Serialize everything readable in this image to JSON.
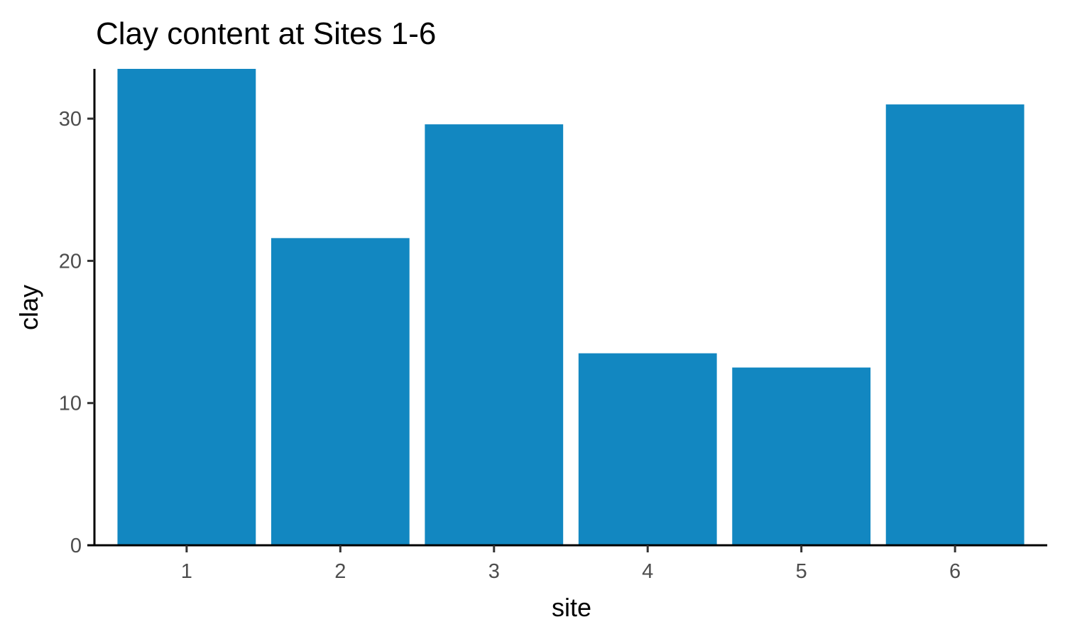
{
  "chart_data": {
    "type": "bar",
    "title": "Clay content at Sites 1-6",
    "xlabel": "site",
    "ylabel": "clay",
    "categories": [
      "1",
      "2",
      "3",
      "4",
      "5",
      "6"
    ],
    "values": [
      33.5,
      21.6,
      29.6,
      13.5,
      12.5,
      31.0
    ],
    "ylim": [
      0,
      33.5
    ],
    "yticks": [
      0,
      10,
      20,
      30
    ],
    "ytick_labels": [
      "0",
      "10",
      "20",
      "30"
    ],
    "bar_color": "#1287c1",
    "grid": false,
    "legend": "none"
  }
}
